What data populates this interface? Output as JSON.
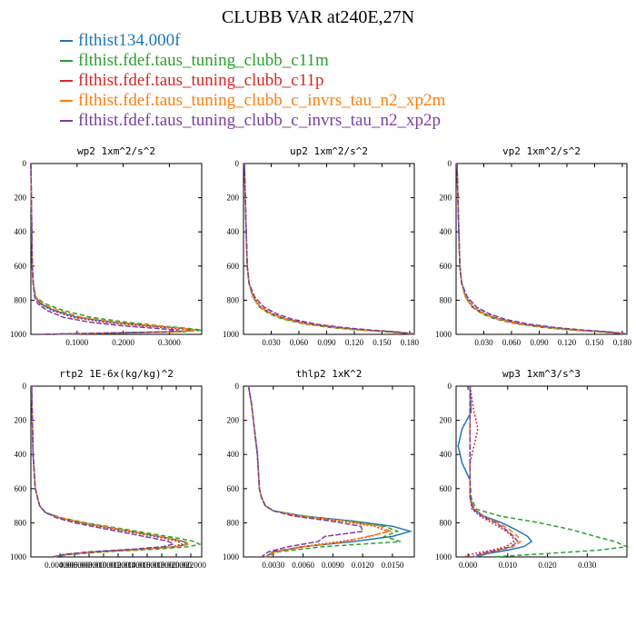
{
  "page": {
    "title": "CLUBB VAR at240E,27N",
    "legend": [
      {
        "label": "flthist134.000f",
        "color": "#1f77b4"
      },
      {
        "label": "flthist.fdef.taus_tuning_clubb_c11m",
        "color": "#2ca02c"
      },
      {
        "label": "flthist.fdef.taus_tuning_clubb_c11p",
        "color": "#d62728"
      },
      {
        "label": "flthist.fdef.taus_tuning_clubb_c_invrs_tau_n2_xp2m",
        "color": "#ff7f0e"
      },
      {
        "label": "flthist.fdef.taus_tuning_clubb_c_invrs_tau_n2_xp2p",
        "color": "#7b3fa0"
      }
    ]
  },
  "chart_data": [
    {
      "type": "line",
      "title": "wp2  1xm^2/s^2",
      "xlim": [
        0,
        0.37
      ],
      "ylim": [
        1000,
        0
      ],
      "xticks": [
        0.1,
        0.2,
        0.3
      ],
      "xtick_labels": [
        "0.1000",
        "0.2000",
        "0.3000"
      ],
      "yticks": [
        0,
        200,
        400,
        600,
        800,
        1000
      ],
      "ytick_labels": [
        "0",
        "200",
        "400",
        "600",
        "800",
        "1000"
      ],
      "y": [
        0,
        200,
        400,
        600,
        700,
        780,
        820,
        860,
        900,
        930,
        950,
        965,
        975,
        985,
        995,
        1000
      ],
      "series": [
        {
          "values": [
            0,
            0.001,
            0.002,
            0.003,
            0.005,
            0.01,
            0.02,
            0.05,
            0.1,
            0.18,
            0.26,
            0.33,
            0.36,
            0.3,
            0.12,
            0.03
          ],
          "color": "#1f77b4",
          "dash": ""
        },
        {
          "values": [
            0,
            0.001,
            0.002,
            0.003,
            0.005,
            0.01,
            0.03,
            0.07,
            0.13,
            0.21,
            0.28,
            0.34,
            0.37,
            0.33,
            0.14,
            0.04
          ],
          "color": "#2ca02c",
          "dash": "5,3"
        },
        {
          "values": [
            0,
            0.001,
            0.002,
            0.003,
            0.005,
            0.01,
            0.02,
            0.045,
            0.09,
            0.16,
            0.24,
            0.31,
            0.35,
            0.32,
            0.13,
            0.03
          ],
          "color": "#d62728",
          "dash": "2,2"
        },
        {
          "values": [
            0,
            0.001,
            0.002,
            0.003,
            0.005,
            0.01,
            0.025,
            0.06,
            0.11,
            0.19,
            0.27,
            0.33,
            0.36,
            0.31,
            0.12,
            0.03
          ],
          "color": "#ff7f0e",
          "dash": "6,3"
        },
        {
          "values": [
            0,
            0.001,
            0.002,
            0.003,
            0.005,
            0.008,
            0.015,
            0.035,
            0.07,
            0.13,
            0.2,
            0.27,
            0.32,
            0.29,
            0.1,
            0.02
          ],
          "color": "#7b3fa0",
          "dash": "6,2"
        }
      ]
    },
    {
      "type": "line",
      "title": "up2  1xm^2/s^2",
      "xlim": [
        0,
        0.185
      ],
      "ylim": [
        1000,
        0
      ],
      "xticks": [
        0.03,
        0.06,
        0.09,
        0.12,
        0.15,
        0.18
      ],
      "xtick_labels": [
        "0.030",
        "0.060",
        "0.090",
        "0.120",
        "0.150",
        "0.180"
      ],
      "yticks": [
        0,
        200,
        400,
        600,
        800,
        1000
      ],
      "ytick_labels": [
        "0",
        "200",
        "400",
        "600",
        "800",
        "1000"
      ],
      "y": [
        0,
        200,
        400,
        600,
        700,
        780,
        840,
        880,
        910,
        940,
        960,
        975,
        985,
        995,
        1000
      ],
      "series": [
        {
          "values": [
            0.001,
            0.002,
            0.003,
            0.004,
            0.006,
            0.01,
            0.018,
            0.03,
            0.045,
            0.07,
            0.1,
            0.13,
            0.16,
            0.18,
            0.185
          ],
          "color": "#1f77b4",
          "dash": ""
        },
        {
          "values": [
            0.001,
            0.002,
            0.003,
            0.004,
            0.006,
            0.01,
            0.017,
            0.028,
            0.042,
            0.066,
            0.095,
            0.125,
            0.155,
            0.178,
            0.185
          ],
          "color": "#2ca02c",
          "dash": "5,3"
        },
        {
          "values": [
            0.001,
            0.002,
            0.003,
            0.004,
            0.006,
            0.011,
            0.019,
            0.032,
            0.047,
            0.072,
            0.102,
            0.132,
            0.162,
            0.181,
            0.185
          ],
          "color": "#d62728",
          "dash": "2,2"
        },
        {
          "values": [
            0.001,
            0.002,
            0.003,
            0.004,
            0.006,
            0.01,
            0.018,
            0.03,
            0.044,
            0.069,
            0.099,
            0.128,
            0.158,
            0.179,
            0.185
          ],
          "color": "#ff7f0e",
          "dash": "6,3"
        },
        {
          "values": [
            0.001,
            0.002,
            0.003,
            0.004,
            0.006,
            0.012,
            0.022,
            0.036,
            0.052,
            0.078,
            0.108,
            0.138,
            0.166,
            0.182,
            0.185
          ],
          "color": "#7b3fa0",
          "dash": "6,2"
        }
      ]
    },
    {
      "type": "line",
      "title": "vp2  1xm^2/s^2",
      "xlim": [
        0,
        0.185
      ],
      "ylim": [
        1000,
        0
      ],
      "xticks": [
        0.03,
        0.06,
        0.09,
        0.12,
        0.15,
        0.18
      ],
      "xtick_labels": [
        "0.030",
        "0.060",
        "0.090",
        "0.120",
        "0.150",
        "0.180"
      ],
      "yticks": [
        0,
        200,
        400,
        600,
        800,
        1000
      ],
      "ytick_labels": [
        "0",
        "200",
        "400",
        "600",
        "800",
        "1000"
      ],
      "y": [
        0,
        200,
        400,
        600,
        700,
        780,
        840,
        880,
        910,
        940,
        960,
        975,
        985,
        995,
        1000
      ],
      "series": [
        {
          "values": [
            0.001,
            0.002,
            0.003,
            0.004,
            0.006,
            0.01,
            0.018,
            0.03,
            0.045,
            0.07,
            0.1,
            0.13,
            0.16,
            0.18,
            0.185
          ],
          "color": "#1f77b4",
          "dash": ""
        },
        {
          "values": [
            0.001,
            0.002,
            0.003,
            0.004,
            0.006,
            0.01,
            0.017,
            0.028,
            0.042,
            0.066,
            0.095,
            0.125,
            0.155,
            0.178,
            0.185
          ],
          "color": "#2ca02c",
          "dash": "5,3"
        },
        {
          "values": [
            0.001,
            0.002,
            0.003,
            0.004,
            0.006,
            0.011,
            0.019,
            0.032,
            0.047,
            0.072,
            0.102,
            0.132,
            0.162,
            0.181,
            0.185
          ],
          "color": "#d62728",
          "dash": "2,2"
        },
        {
          "values": [
            0.001,
            0.002,
            0.003,
            0.004,
            0.006,
            0.01,
            0.018,
            0.03,
            0.044,
            0.069,
            0.099,
            0.128,
            0.158,
            0.179,
            0.185
          ],
          "color": "#ff7f0e",
          "dash": "6,3"
        },
        {
          "values": [
            0.001,
            0.002,
            0.003,
            0.004,
            0.006,
            0.012,
            0.022,
            0.036,
            0.052,
            0.078,
            0.108,
            0.138,
            0.166,
            0.182,
            0.185
          ],
          "color": "#7b3fa0",
          "dash": "6,2"
        }
      ]
    },
    {
      "type": "line",
      "title": "rtp2  1E-6x(kg/kg)^2",
      "xlim": [
        0,
        0.0235
      ],
      "ylim": [
        1000,
        0
      ],
      "xticks": [
        0.004,
        0.006,
        0.008,
        0.01,
        0.012,
        0.014,
        0.016,
        0.018,
        0.02,
        0.022
      ],
      "xtick_labels": [
        "0.004000",
        "0.006000",
        "0.008000",
        "0.010000",
        "0.012000",
        "0.014000",
        "0.016000",
        "0.018000",
        "0.020000",
        "0.022000"
      ],
      "yticks": [
        0,
        200,
        400,
        600,
        800,
        1000
      ],
      "ytick_labels": [
        "0",
        "200",
        "400",
        "600",
        "800",
        "1000"
      ],
      "y": [
        0,
        200,
        400,
        600,
        700,
        740,
        770,
        800,
        830,
        860,
        890,
        910,
        925,
        940,
        955,
        970,
        985,
        1000
      ],
      "series": [
        {
          "values": [
            0.0001,
            0.0002,
            0.0003,
            0.0006,
            0.0012,
            0.002,
            0.004,
            0.007,
            0.011,
            0.015,
            0.019,
            0.021,
            0.0215,
            0.02,
            0.015,
            0.009,
            0.005,
            0.003
          ],
          "color": "#1f77b4",
          "dash": ""
        },
        {
          "values": [
            0.0001,
            0.0002,
            0.0003,
            0.0006,
            0.0012,
            0.002,
            0.0042,
            0.0075,
            0.0118,
            0.016,
            0.0203,
            0.0225,
            0.0232,
            0.0218,
            0.017,
            0.01,
            0.0055,
            0.003
          ],
          "color": "#2ca02c",
          "dash": "5,3"
        },
        {
          "values": [
            0.0001,
            0.0002,
            0.0003,
            0.0006,
            0.0012,
            0.002,
            0.0038,
            0.0068,
            0.0105,
            0.0145,
            0.0182,
            0.0203,
            0.0208,
            0.0195,
            0.0148,
            0.0085,
            0.0048,
            0.003
          ],
          "color": "#d62728",
          "dash": "2,2"
        },
        {
          "values": [
            0.0001,
            0.0002,
            0.0003,
            0.0006,
            0.0012,
            0.002,
            0.004,
            0.0072,
            0.0112,
            0.0152,
            0.0192,
            0.0212,
            0.0218,
            0.0202,
            0.0152,
            0.0088,
            0.005,
            0.003
          ],
          "color": "#ff7f0e",
          "dash": "6,3"
        },
        {
          "values": [
            0.0001,
            0.0002,
            0.0003,
            0.0006,
            0.0012,
            0.002,
            0.0035,
            0.006,
            0.0095,
            0.0132,
            0.0168,
            0.019,
            0.0196,
            0.0182,
            0.014,
            0.008,
            0.0045,
            0.003
          ],
          "color": "#7b3fa0",
          "dash": "6,2"
        }
      ]
    },
    {
      "type": "line",
      "title": "thlp2  1xK^2",
      "xlim": [
        0,
        0.0172
      ],
      "ylim": [
        1000,
        0
      ],
      "xticks": [
        0.003,
        0.006,
        0.009,
        0.012,
        0.015
      ],
      "xtick_labels": [
        "0.0030",
        "0.0060",
        "0.0090",
        "0.0120",
        "0.0150"
      ],
      "yticks": [
        0,
        200,
        400,
        600,
        800,
        1000
      ],
      "ytick_labels": [
        "0",
        "200",
        "400",
        "600",
        "800",
        "1000"
      ],
      "y": [
        0,
        100,
        200,
        300,
        400,
        500,
        600,
        650,
        700,
        730,
        760,
        790,
        820,
        850,
        880,
        910,
        940,
        970,
        1000
      ],
      "series": [
        {
          "values": [
            0.0005,
            0.0008,
            0.001,
            0.0012,
            0.0014,
            0.0015,
            0.0016,
            0.0018,
            0.0022,
            0.003,
            0.006,
            0.011,
            0.015,
            0.0168,
            0.015,
            0.011,
            0.006,
            0.003,
            0.0022
          ],
          "color": "#1f77b4",
          "dash": ""
        },
        {
          "values": [
            0.0005,
            0.0008,
            0.001,
            0.0012,
            0.0014,
            0.0015,
            0.0016,
            0.0018,
            0.0022,
            0.003,
            0.0058,
            0.0105,
            0.0142,
            0.0155,
            0.0142,
            0.0158,
            0.008,
            0.0035,
            0.0022
          ],
          "color": "#2ca02c",
          "dash": "5,3"
        },
        {
          "values": [
            0.0005,
            0.0008,
            0.001,
            0.0012,
            0.0014,
            0.0015,
            0.0016,
            0.0018,
            0.0022,
            0.003,
            0.0055,
            0.0098,
            0.0132,
            0.0145,
            0.0128,
            0.0098,
            0.0058,
            0.003,
            0.0022
          ],
          "color": "#d62728",
          "dash": "2,2"
        },
        {
          "values": [
            0.0005,
            0.0008,
            0.001,
            0.0012,
            0.0014,
            0.0015,
            0.0016,
            0.0018,
            0.0022,
            0.003,
            0.0056,
            0.0102,
            0.0138,
            0.0148,
            0.0125,
            0.0102,
            0.0062,
            0.0032,
            0.0022
          ],
          "color": "#ff7f0e",
          "dash": "6,3"
        },
        {
          "values": [
            0.0005,
            0.0008,
            0.001,
            0.0012,
            0.0014,
            0.0015,
            0.0016,
            0.0018,
            0.0022,
            0.003,
            0.005,
            0.0088,
            0.0118,
            0.012,
            0.0082,
            0.0075,
            0.0045,
            0.0025,
            0.0018
          ],
          "color": "#7b3fa0",
          "dash": "6,2"
        }
      ]
    },
    {
      "type": "line",
      "title": "wp3  1xm^3/s^3",
      "xlim": [
        -0.003,
        0.04
      ],
      "ylim": [
        1000,
        0
      ],
      "xticks": [
        0,
        0.01,
        0.02,
        0.03
      ],
      "xtick_labels": [
        "0.000",
        "0.010",
        "0.020",
        "0.030"
      ],
      "yticks": [
        0,
        200,
        400,
        600,
        800,
        1000
      ],
      "ytick_labels": [
        "0",
        "200",
        "400",
        "600",
        "800",
        "1000"
      ],
      "y": [
        0,
        150,
        250,
        350,
        450,
        550,
        650,
        720,
        760,
        800,
        840,
        880,
        910,
        940,
        960,
        980,
        1000
      ],
      "series": [
        {
          "values": [
            0.0005,
            0.0008,
            -0.0015,
            -0.0025,
            -0.0015,
            0.0005,
            0.0005,
            0.0015,
            0.004,
            0.0085,
            0.012,
            0.015,
            0.016,
            0.014,
            0.01,
            0.005,
            0.002
          ],
          "color": "#1f77b4",
          "dash": ""
        },
        {
          "values": [
            0.0005,
            0.0005,
            0.0005,
            0.0005,
            0.0005,
            0.0005,
            0.0008,
            0.002,
            0.008,
            0.018,
            0.026,
            0.032,
            0.037,
            0.04,
            0.033,
            0.02,
            0.006
          ],
          "color": "#2ca02c",
          "dash": "5,3"
        },
        {
          "values": [
            0.0005,
            0.0015,
            0.0025,
            0.0015,
            0.0005,
            0.0005,
            0.0005,
            0.001,
            0.003,
            0.006,
            0.009,
            0.0112,
            0.0115,
            0.0095,
            0.006,
            0.0015,
            -0.001
          ],
          "color": "#d62728",
          "dash": "2,2"
        },
        {
          "values": [
            0.0005,
            0.0005,
            0.0005,
            0.0005,
            0.0005,
            0.0005,
            0.0005,
            0.0015,
            0.004,
            0.0075,
            0.0105,
            0.0125,
            0.0132,
            0.0115,
            0.0082,
            0.004,
            0.0015
          ],
          "color": "#ff7f0e",
          "dash": "6,3"
        },
        {
          "values": [
            0.0005,
            0.0005,
            0.0005,
            0.0005,
            0.0005,
            0.0005,
            0.0005,
            0.0012,
            0.0035,
            0.007,
            0.0095,
            0.0115,
            0.0125,
            0.0108,
            0.0075,
            0.0035,
            0.001
          ],
          "color": "#7b3fa0",
          "dash": "6,2"
        }
      ]
    }
  ]
}
